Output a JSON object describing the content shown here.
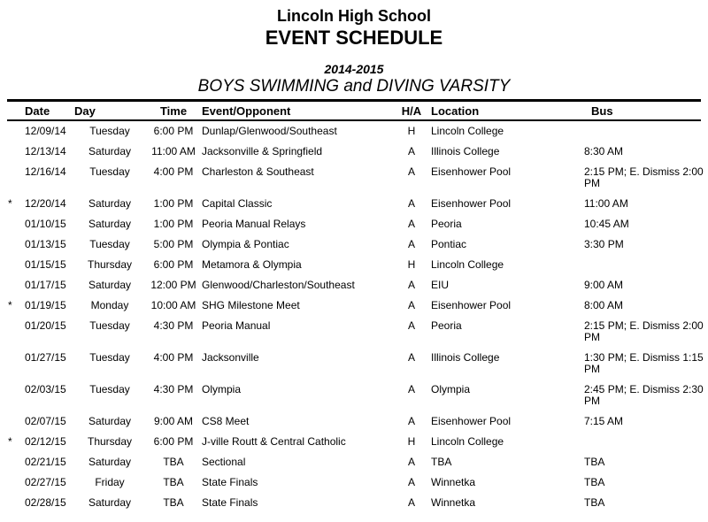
{
  "header": {
    "school": "Lincoln High School",
    "title": "EVENT SCHEDULE",
    "season": "2014-2015",
    "subtitle": "BOYS SWIMMING and DIVING VARSITY"
  },
  "table": {
    "columns": [
      "Date",
      "Day",
      "Time",
      "Event/Opponent",
      "H/A",
      "Location",
      "Bus"
    ],
    "rows": [
      {
        "flag": "",
        "date": "12/09/14",
        "day": "Tuesday",
        "time": "6:00 PM",
        "event": "Dunlap/Glenwood/Southeast",
        "ha": "H",
        "location": "Lincoln College",
        "bus": ""
      },
      {
        "flag": "",
        "date": "12/13/14",
        "day": "Saturday",
        "time": "11:00 AM",
        "event": "Jacksonville & Springfield",
        "ha": "A",
        "location": "Illinois College",
        "bus": "8:30 AM"
      },
      {
        "flag": "",
        "date": "12/16/14",
        "day": "Tuesday",
        "time": "4:00 PM",
        "event": "Charleston & Southeast",
        "ha": "A",
        "location": "Eisenhower Pool",
        "bus": "2:15 PM; E. Dismiss 2:00 PM"
      },
      {
        "flag": "*",
        "date": "12/20/14",
        "day": "Saturday",
        "time": "1:00 PM",
        "event": "Capital Classic",
        "ha": "A",
        "location": "Eisenhower Pool",
        "bus": "11:00 AM"
      },
      {
        "flag": "",
        "date": "01/10/15",
        "day": "Saturday",
        "time": "1:00 PM",
        "event": "Peoria Manual Relays",
        "ha": "A",
        "location": "Peoria",
        "bus": "10:45 AM"
      },
      {
        "flag": "",
        "date": "01/13/15",
        "day": "Tuesday",
        "time": "5:00 PM",
        "event": "Olympia & Pontiac",
        "ha": "A",
        "location": "Pontiac",
        "bus": "3:30 PM"
      },
      {
        "flag": "",
        "date": "01/15/15",
        "day": "Thursday",
        "time": "6:00 PM",
        "event": "Metamora & Olympia",
        "ha": "H",
        "location": "Lincoln College",
        "bus": ""
      },
      {
        "flag": "",
        "date": "01/17/15",
        "day": "Saturday",
        "time": "12:00 PM",
        "event": "Glenwood/Charleston/Southeast",
        "ha": "A",
        "location": "EIU",
        "bus": "9:00 AM"
      },
      {
        "flag": "*",
        "date": "01/19/15",
        "day": "Monday",
        "time": "10:00 AM",
        "event": "SHG Milestone Meet",
        "ha": "A",
        "location": "Eisenhower Pool",
        "bus": "8:00 AM"
      },
      {
        "flag": "",
        "date": "01/20/15",
        "day": "Tuesday",
        "time": "4:30 PM",
        "event": "Peoria Manual",
        "ha": "A",
        "location": "Peoria",
        "bus": "2:15 PM; E. Dismiss 2:00 PM"
      },
      {
        "flag": "",
        "date": "01/27/15",
        "day": "Tuesday",
        "time": "4:00 PM",
        "event": "Jacksonville",
        "ha": "A",
        "location": "Illinois College",
        "bus": "1:30 PM; E. Dismiss 1:15 PM"
      },
      {
        "flag": "",
        "date": "02/03/15",
        "day": "Tuesday",
        "time": "4:30 PM",
        "event": "Olympia",
        "ha": "A",
        "location": "Olympia",
        "bus": "2:45 PM; E. Dismiss 2:30 PM"
      },
      {
        "flag": "",
        "date": "02/07/15",
        "day": "Saturday",
        "time": "9:00 AM",
        "event": "CS8 Meet",
        "ha": "A",
        "location": "Eisenhower Pool",
        "bus": "7:15 AM"
      },
      {
        "flag": "*",
        "date": "02/12/15",
        "day": "Thursday",
        "time": "6:00 PM",
        "event": "J-ville Routt & Central Catholic",
        "ha": "H",
        "location": "Lincoln College",
        "bus": ""
      },
      {
        "flag": "",
        "date": "02/21/15",
        "day": "Saturday",
        "time": "TBA",
        "event": "Sectional",
        "ha": "A",
        "location": "TBA",
        "bus": "TBA"
      },
      {
        "flag": "",
        "date": "02/27/15",
        "day": "Friday",
        "time": "TBA",
        "event": "State Finals",
        "ha": "A",
        "location": "Winnetka",
        "bus": "TBA"
      },
      {
        "flag": "",
        "date": "02/28/15",
        "day": "Saturday",
        "time": "TBA",
        "event": "State Finals",
        "ha": "A",
        "location": "Winnetka",
        "bus": "TBA"
      }
    ]
  }
}
